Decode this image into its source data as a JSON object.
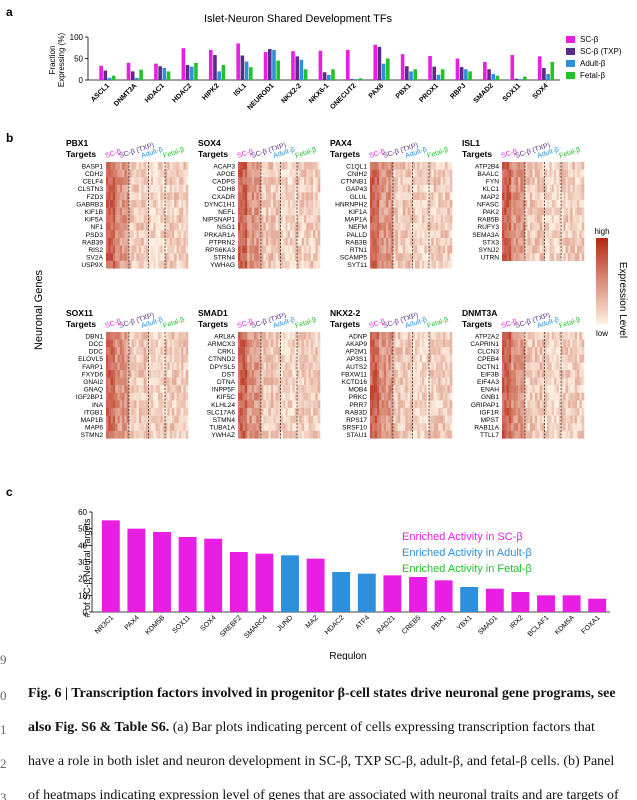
{
  "panels": {
    "a": "a",
    "b": "b",
    "c": "c"
  },
  "colors": {
    "sc_beta": "#e81ee3",
    "sc_beta_txp": "#5b2c86",
    "adult_beta": "#2e8fdc",
    "fetal_beta": "#22c22a",
    "heat_low": "#fdf0e2",
    "heat_high": "#b52810",
    "enriched_sc": "#e81ee3",
    "enriched_adult": "#2e8fdc",
    "enriched_fetal": "#22c22a"
  },
  "chart_data": [
    {
      "type": "bar",
      "title": "Islet-Neuron Shared Development TFs",
      "ylabel": "Fraction Expressing (%)",
      "ylim": [
        0,
        100
      ],
      "yticks": [
        0,
        50,
        100
      ],
      "categories": [
        "ASCL1",
        "DNMT3A",
        "HDAC1",
        "HDAC2",
        "HIPK2",
        "ISL1",
        "NEUROD1",
        "NKX2-2",
        "NKX6-1",
        "ONECUT2",
        "PAX6",
        "PBX1",
        "PROX1",
        "RBPJ",
        "SMAD2",
        "SOX11",
        "SOX4"
      ],
      "series": [
        {
          "name": "SC-β",
          "color_key": "sc_beta",
          "values": [
            33,
            40,
            38,
            74,
            70,
            85,
            65,
            67,
            68,
            70,
            82,
            60,
            56,
            50,
            42,
            58,
            55
          ]
        },
        {
          "name": "SC-β (TXP)",
          "color_key": "sc_beta_txp",
          "values": [
            22,
            20,
            32,
            35,
            58,
            57,
            72,
            55,
            18,
            2,
            77,
            32,
            31,
            30,
            25,
            3,
            28
          ]
        },
        {
          "name": "Adult-β",
          "color_key": "adult_beta",
          "values": [
            5,
            5,
            28,
            31,
            20,
            43,
            70,
            47,
            12,
            2,
            38,
            20,
            12,
            25,
            14,
            2,
            14
          ]
        },
        {
          "name": "Fetal-β",
          "color_key": "fetal_beta",
          "values": [
            10,
            24,
            20,
            40,
            35,
            30,
            45,
            25,
            25,
            4,
            50,
            25,
            25,
            20,
            10,
            8,
            42
          ]
        }
      ],
      "legend": [
        "SC-β",
        "SC-β (TXP)",
        "Adult-β",
        "Fetal-β"
      ],
      "legend_position": "right"
    },
    {
      "type": "heatmap",
      "ylabel": "Neuronal Genes",
      "column_groups": [
        "SC-β",
        "SC-β (TXP)",
        "Adult-β",
        "Fetal-β"
      ],
      "colorbar": {
        "title": "Expression Level",
        "high": "high",
        "low": "low"
      },
      "heatmaps": [
        {
          "tf": "PBX1",
          "suffix": "Targets",
          "genes": [
            "BASP1",
            "CDH2",
            "CELF4",
            "CLSTN3",
            "FZD3",
            "GABRB3",
            "KIF1B",
            "KIF5A",
            "NF1",
            "PSD3",
            "RAB39",
            "RIS2",
            "SV2A",
            "USP9X"
          ]
        },
        {
          "tf": "SOX4",
          "suffix": "Targets",
          "genes": [
            "ACAP3",
            "APOE",
            "CADPS",
            "CDH8",
            "CXADR",
            "DYNC1H1",
            "NEFL",
            "NIPSNAP1",
            "NSG1",
            "PRKAR1A",
            "PTPRN2",
            "RPS6KA3",
            "STRN4",
            "YWHAG"
          ]
        },
        {
          "tf": "PAX4",
          "suffix": "Targets",
          "genes": [
            "C1QL1",
            "CNIH2",
            "CTNNB1",
            "GAP43",
            "GLUL",
            "HNRNPH2",
            "KIF1A",
            "MAP1A",
            "NEFM",
            "PALLD",
            "RAB3B",
            "RTN1",
            "SCAMP5",
            "SYT11"
          ]
        },
        {
          "tf": "ISL1",
          "suffix": "Targets",
          "genes": [
            "ATP2B4",
            "BAALC",
            "FYN",
            "KLC1",
            "MAP2",
            "NFASC",
            "PAK2",
            "RAB5B",
            "RUFY3",
            "SEMA3A",
            "STX3",
            "SYNJ2",
            "UTRN"
          ]
        },
        {
          "tf": "SOX11",
          "suffix": "Targets",
          "genes": [
            "DBN1",
            "DCC",
            "DDC",
            "ELOVL5",
            "FARP1",
            "FXYD6",
            "GNAI2",
            "GNAQ",
            "IGF2BP1",
            "INA",
            "ITGB1",
            "MAP1B",
            "MAP6",
            "STMN2"
          ]
        },
        {
          "tf": "SMAD1",
          "suffix": "Targets",
          "genes": [
            "ARL8A",
            "ARMCX3",
            "CRKL",
            "CTNND2",
            "DPYSL5",
            "DST",
            "DTNA",
            "INPP5F",
            "KIF5C",
            "KLHL24",
            "SLC17A6",
            "STMN4",
            "TUBA1A",
            "YWHAZ"
          ]
        },
        {
          "tf": "NKX2-2",
          "suffix": "Targets",
          "genes": [
            "ADNP",
            "AKAP9",
            "AP2M1",
            "AP3S1",
            "AUTS2",
            "FBXW11",
            "KCTD16",
            "MOB4",
            "PRKC",
            "PRR7",
            "RAB3D",
            "RPS17",
            "SRSF10",
            "STAU1"
          ]
        },
        {
          "tf": "DNMT3A",
          "suffix": "Targets",
          "genes": [
            "ATP2A2",
            "CAPRIN1",
            "CLCN3",
            "CPEB4",
            "DCTN1",
            "EIF3B",
            "EIF4A3",
            "ENAH",
            "GNB1",
            "GRIPAP1",
            "IGF1R",
            "MPST",
            "RAB11A",
            "TTLL7"
          ]
        }
      ]
    },
    {
      "type": "bar",
      "xlabel": "Regulon",
      "ylabel": "# of SC-β Neural Targets",
      "ylim": [
        0,
        60
      ],
      "yticks": [
        0,
        10,
        20,
        30,
        40,
        50,
        60
      ],
      "categories": [
        "NR3C1",
        "PAX4",
        "KDM5B",
        "SOX11",
        "SOX4",
        "SREBF2",
        "SMARC4",
        "JUND",
        "MAZ",
        "HDAC2",
        "ATF4",
        "RAD21",
        "CREB5",
        "PBX1",
        "YBX1",
        "SMAD1",
        "IRX2",
        "BCLAF1",
        "KDM5A",
        "FOXA1"
      ],
      "values": [
        55,
        50,
        48,
        45,
        44,
        36,
        35,
        34,
        32,
        24,
        23,
        22,
        21,
        19,
        15,
        14,
        12,
        10,
        10,
        8
      ],
      "bar_groups": [
        "sc",
        "sc",
        "sc",
        "sc",
        "sc",
        "sc",
        "sc",
        "adult",
        "sc",
        "adult",
        "adult",
        "sc",
        "sc",
        "sc",
        "adult",
        "sc",
        "sc",
        "sc",
        "sc",
        "sc"
      ],
      "legend": [
        {
          "label": "Enriched Activity in SC-β",
          "color_key": "enriched_sc"
        },
        {
          "label": "Enriched Activity in Adult-β",
          "color_key": "enriched_adult"
        },
        {
          "label": "Enriched Activity in Fetal-β",
          "color_key": "enriched_fetal"
        }
      ]
    }
  ],
  "caption": {
    "line_numbers": [
      "9",
      "0",
      "1",
      "2",
      "3"
    ],
    "title_bold": "Fig. 6 | Transcription factors involved in progenitor β-cell states drive neuronal gene programs, see",
    "line2_bold": "also Fig. S6 & Table S6.",
    "line2_rest": " (a) Bar plots indicating percent of cells expressing transcription factors that",
    "line3": "have a role in both islet and neuron development in SC-β, TXP SC-β, adult-β, and fetal-β cells. (b) Panel",
    "line4": "of heatmaps indicating expression level of genes that are associated with neuronal traits and are targets of"
  }
}
